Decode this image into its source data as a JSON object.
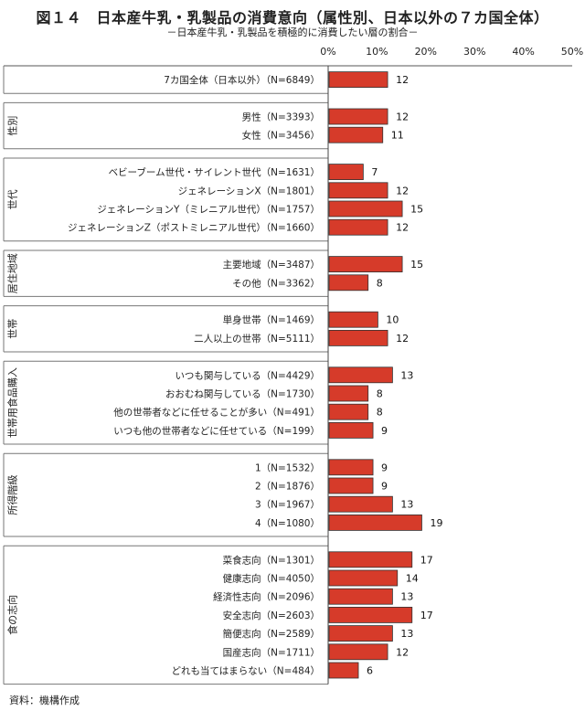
{
  "chart_data": {
    "type": "bar",
    "orientation": "horizontal",
    "title": "図１４　日本産牛乳・乳製品の消費意向（属性別、日本以外の７カ国全体）",
    "subtitle": "－日本産牛乳・乳製品を積極的に消費したい層の割合－",
    "source": "資料：機構作成",
    "xlim": [
      0,
      50
    ],
    "ticks": [
      "0%",
      "10%",
      "20%",
      "30%",
      "40%",
      "50%"
    ],
    "tick_values": [
      0,
      10,
      20,
      30,
      40,
      50
    ],
    "bar_color": "#d63b2a",
    "groups": [
      {
        "label": "",
        "items": [
          {
            "category": "7カ国全体（日本以外）（N=6849）",
            "value": 12
          }
        ]
      },
      {
        "label": "性別",
        "items": [
          {
            "category": "男性（N=3393）",
            "value": 12
          },
          {
            "category": "女性（N=3456）",
            "value": 11
          }
        ]
      },
      {
        "label": "世代",
        "items": [
          {
            "category": "ベビーブーム世代・サイレント世代（N=1631）",
            "value": 7
          },
          {
            "category": "ジェネレーションX（N=1801）",
            "value": 12
          },
          {
            "category": "ジェネレーションY（ミレニアル世代）（N=1757）",
            "value": 15
          },
          {
            "category": "ジェネレーションZ（ポストミレニアル世代）（N=1660）",
            "value": 12
          }
        ]
      },
      {
        "label": "居住地域",
        "items": [
          {
            "category": "主要地域（N=3487）",
            "value": 15
          },
          {
            "category": "その他（N=3362）",
            "value": 8
          }
        ]
      },
      {
        "label": "世帯",
        "items": [
          {
            "category": "単身世帯（N=1469）",
            "value": 10
          },
          {
            "category": "二人以上の世帯（N=5111）",
            "value": 12
          }
        ]
      },
      {
        "label": "世帯用食品購入",
        "items": [
          {
            "category": "いつも関与している（N=4429）",
            "value": 13
          },
          {
            "category": "おおむね関与している（N=1730）",
            "value": 8
          },
          {
            "category": "他の世帯者などに任せることが多い（N=491）",
            "value": 8
          },
          {
            "category": "いつも他の世帯者などに任せている（N=199）",
            "value": 9
          }
        ]
      },
      {
        "label": "所得階級",
        "items": [
          {
            "category": "1（N=1532）",
            "value": 9
          },
          {
            "category": "2（N=1876）",
            "value": 9
          },
          {
            "category": "3（N=1967）",
            "value": 13
          },
          {
            "category": "4（N=1080）",
            "value": 19
          }
        ]
      },
      {
        "label": "食の志向",
        "items": [
          {
            "category": "菜食志向（N=1301）",
            "value": 17
          },
          {
            "category": "健康志向（N=4050）",
            "value": 14
          },
          {
            "category": "経済性志向（N=2096）",
            "value": 13
          },
          {
            "category": "安全志向（N=2603）",
            "value": 17
          },
          {
            "category": "簡便志向（N=2589）",
            "value": 13
          },
          {
            "category": "国産志向（N=1711）",
            "value": 12
          },
          {
            "category": "どれも当てはまらない（N=484）",
            "value": 6
          }
        ]
      }
    ]
  }
}
